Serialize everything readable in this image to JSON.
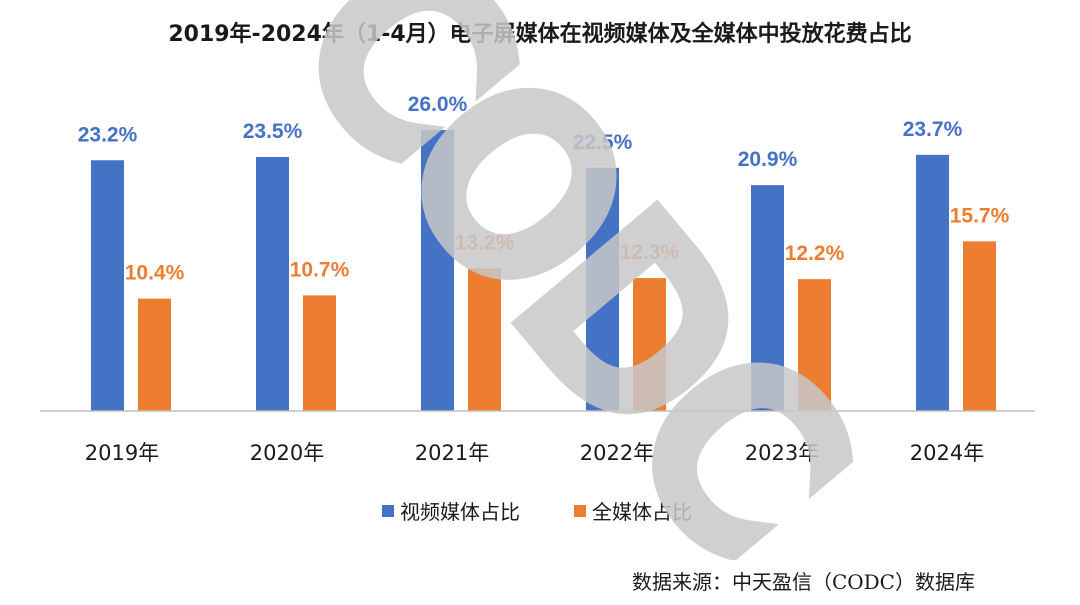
{
  "source_note": "数据来源：中天盈信（CODC）数据库",
  "watermark": "CODC",
  "colors": {
    "video": "#4472C4",
    "all": "#ED7D31",
    "axis": "#BFBFBF",
    "text": "#1a1a1a",
    "watermark": "#c8c8c8"
  },
  "chart_data": {
    "type": "bar",
    "title": "2019年-2024年（1-4月）电子屏媒体在视频媒体及全媒体中投放花费占比",
    "categories": [
      "2019年",
      "2020年",
      "2021年",
      "2022年",
      "2023年",
      "2024年"
    ],
    "series": [
      {
        "name": "视频媒体占比",
        "values": [
          23.2,
          23.5,
          26.0,
          22.5,
          20.9,
          23.7
        ],
        "labels": [
          "23.2%",
          "23.5%",
          "26.0%",
          "22.5%",
          "20.9%",
          "23.7%"
        ]
      },
      {
        "name": "全媒体占比",
        "values": [
          10.4,
          10.7,
          13.2,
          12.3,
          12.2,
          15.7
        ],
        "labels": [
          "10.4%",
          "10.7%",
          "13.2%",
          "12.3%",
          "12.2%",
          "15.7%"
        ]
      }
    ],
    "ylim": [
      0,
      26
    ],
    "xlabel": "",
    "ylabel": "",
    "grid": false,
    "legend": "bottom"
  }
}
